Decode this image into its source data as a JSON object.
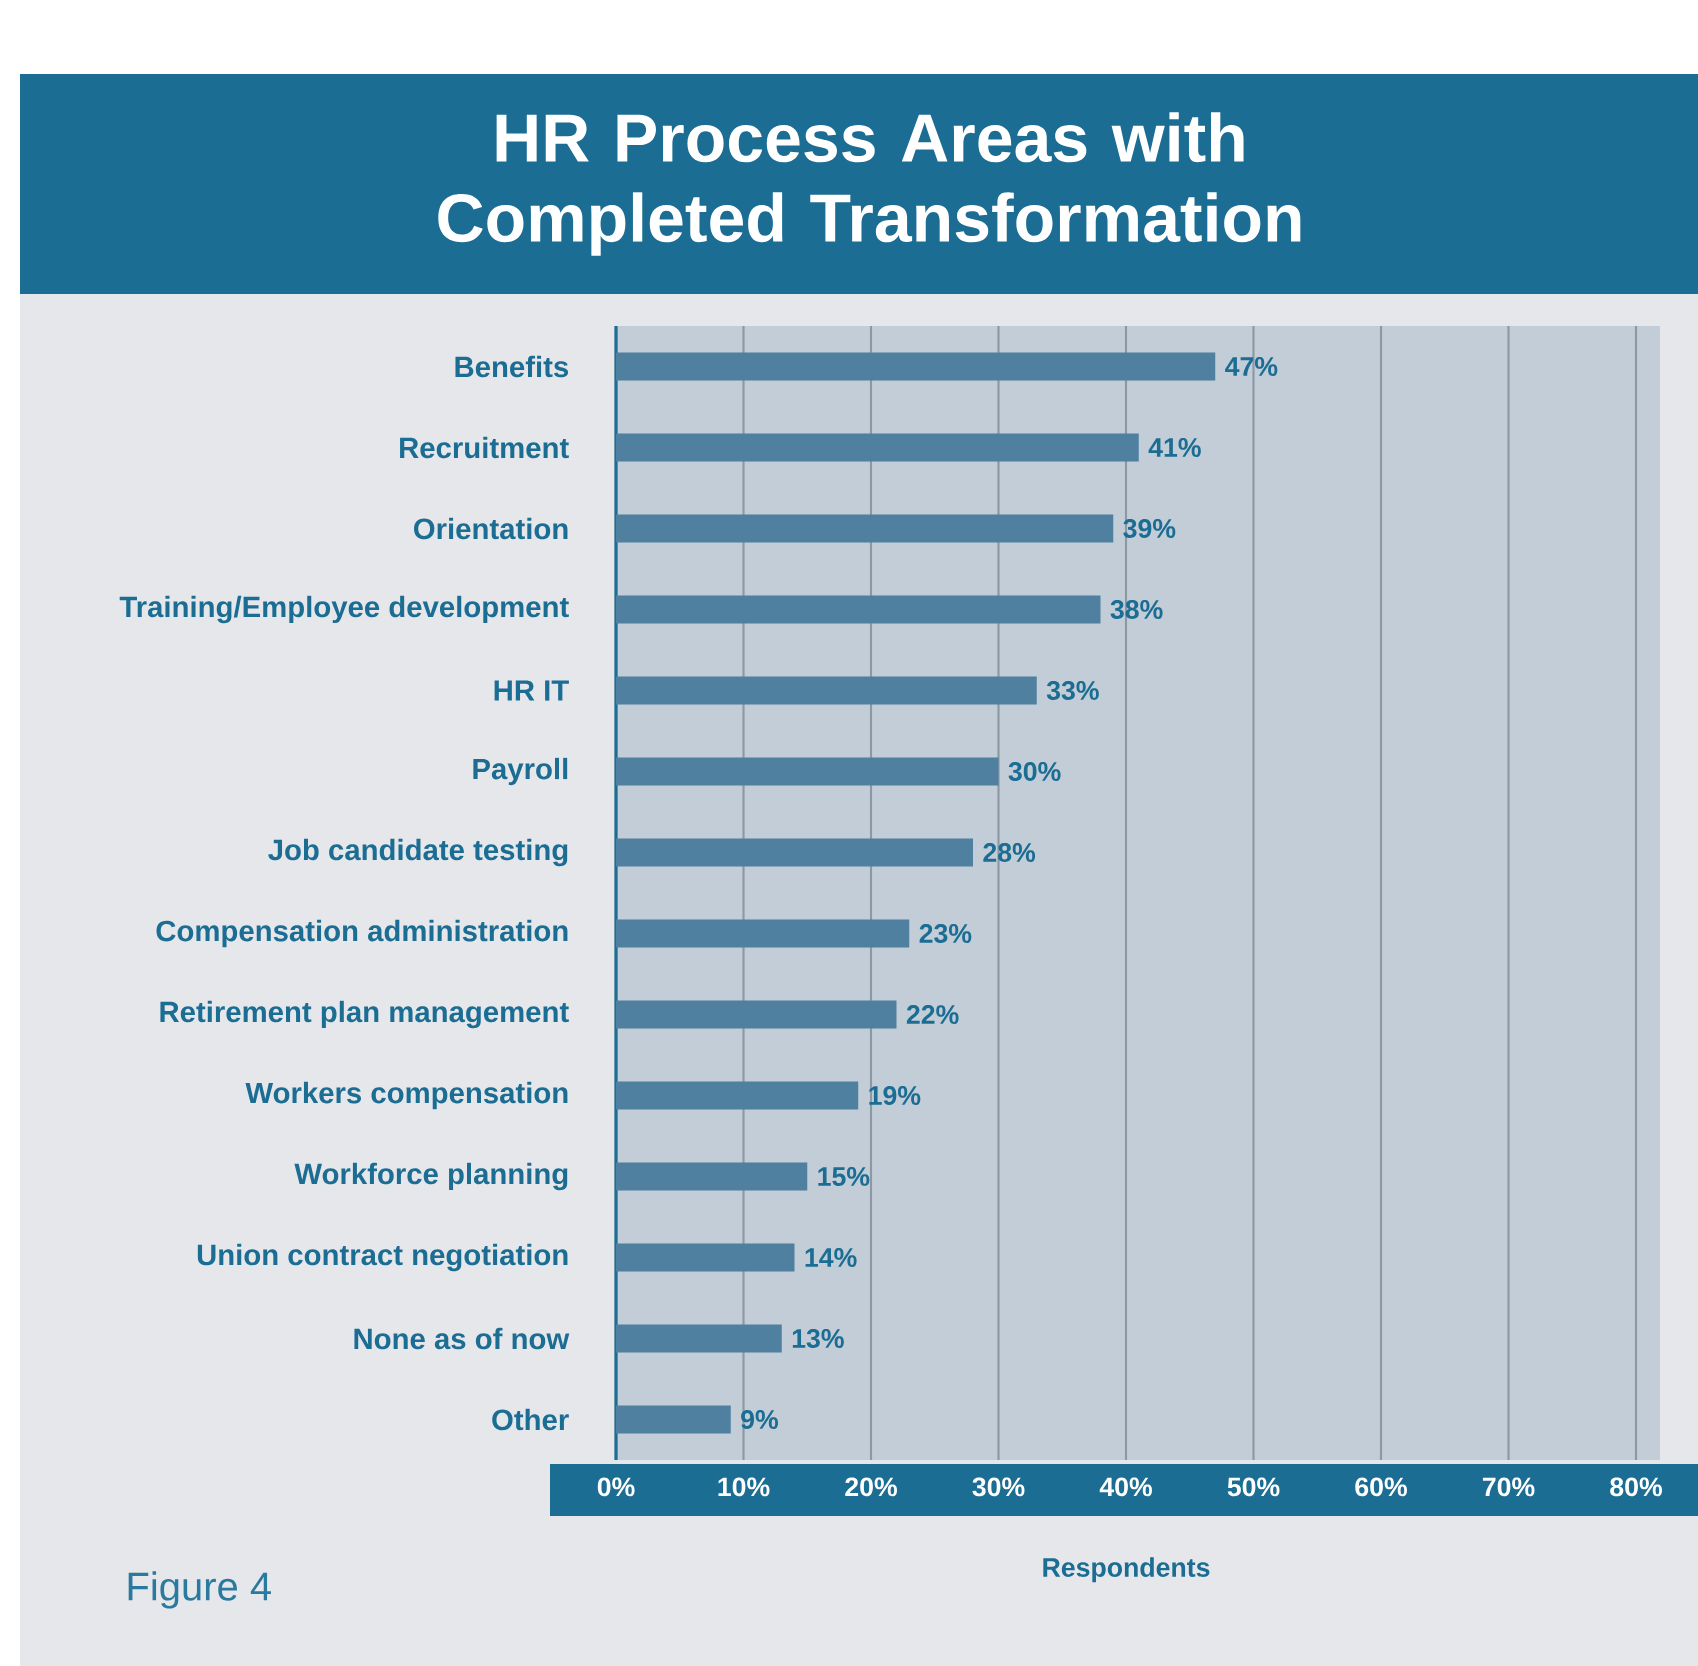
{
  "chart_data": {
    "type": "bar",
    "orientation": "horizontal",
    "title": "HR Process Areas with Completed Transformation",
    "categories": [
      "Benefits",
      "Recruitment",
      "Orientation",
      "Training/Employee development",
      "HR IT",
      "Payroll",
      "Job candidate testing",
      "Compensation administration",
      "Retirement plan management",
      "Workers compensation",
      "Workforce planning",
      "Union contract negotiation",
      "None as of now",
      "Other"
    ],
    "values": [
      47,
      41,
      39,
      38,
      33,
      30,
      28,
      23,
      22,
      19,
      15,
      14,
      13,
      9
    ],
    "value_labels": [
      "47%",
      "41%",
      "39%",
      "38%",
      "33%",
      "30%",
      "28%",
      "23%",
      "22%",
      "19%",
      "15%",
      "14%",
      "13%",
      "9%"
    ],
    "color": "#4f80a0",
    "xlim": [
      0,
      80
    ],
    "xticks": [
      {
        "value": 0,
        "label": "0%"
      },
      {
        "value": 10,
        "label": "10%"
      },
      {
        "value": 20,
        "label": "20%"
      },
      {
        "value": 30,
        "label": "30%"
      },
      {
        "value": 40,
        "label": "40%"
      },
      {
        "value": 50,
        "label": "50%"
      },
      {
        "value": 60,
        "label": "60%"
      },
      {
        "value": 70,
        "label": "70%"
      },
      {
        "value": 80,
        "label": "80%"
      }
    ],
    "xlabel": "Respondents",
    "grid": "x",
    "annotations": [
      "Figure 4"
    ]
  }
}
